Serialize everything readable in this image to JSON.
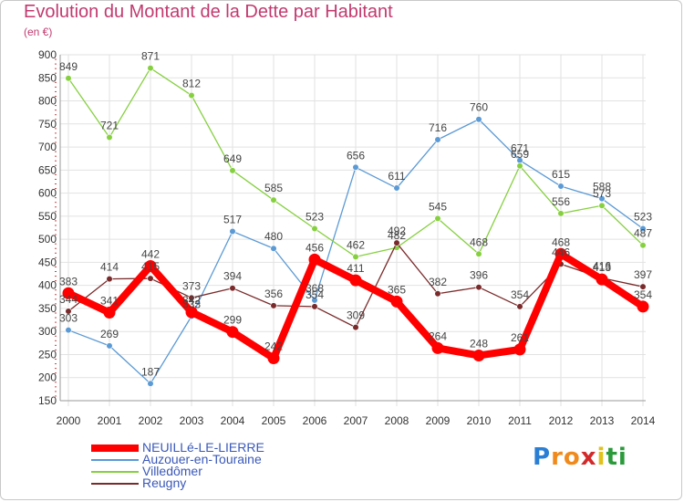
{
  "chart_data": {
    "type": "line",
    "title": "Evolution du Montant de la Dette par Habitant",
    "subtitle": "(en €)",
    "xlabel": "",
    "ylabel": "",
    "x": [
      "2000",
      "2001",
      "2002",
      "2003",
      "2004",
      "2005",
      "2006",
      "2007",
      "2008",
      "2009",
      "2010",
      "2011",
      "2012",
      "2013",
      "2014"
    ],
    "ylim": [
      150,
      900
    ],
    "yticks": [
      "150",
      "200",
      "250",
      "300",
      "350",
      "400",
      "450",
      "500",
      "550",
      "600",
      "650",
      "700",
      "750",
      "800",
      "850",
      "900"
    ],
    "grid": true,
    "legend_position": "bottom-left",
    "series": [
      {
        "name": "NEUILLé-LE-LIERRE",
        "color": "#ff0000",
        "values": [
          383,
          341,
          442,
          342,
          299,
          242,
          456,
          411,
          365,
          264,
          248,
          261,
          468,
          413,
          354
        ],
        "labels": [
          "383",
          "341",
          "442",
          "342",
          "299",
          "242",
          "456",
          "411",
          "365",
          "264",
          "248",
          "261",
          "468",
          "413",
          "354"
        ]
      },
      {
        "name": "Auzouer-en-Touraine",
        "color": "#5b9ad5",
        "values": [
          303,
          269,
          187,
          333,
          517,
          480,
          368,
          656,
          611,
          716,
          760,
          671,
          615,
          588,
          523
        ],
        "labels": [
          "303",
          "269",
          "187",
          "333",
          "517",
          "480",
          "368",
          "656",
          "611",
          "716",
          "760",
          "671",
          "615",
          "588",
          "523"
        ]
      },
      {
        "name": "Villedômer",
        "color": "#86d040",
        "values": [
          849,
          721,
          871,
          812,
          649,
          585,
          523,
          462,
          482,
          545,
          468,
          659,
          556,
          573,
          487
        ],
        "labels": [
          "849",
          "721",
          "871",
          "812",
          "649",
          "585",
          "523",
          "462",
          "482",
          "545",
          "468",
          "659",
          "556",
          "573",
          "487"
        ]
      },
      {
        "name": "Reugny",
        "color": "#7a2a2a",
        "values": [
          344,
          414,
          415,
          373,
          394,
          356,
          354,
          309,
          492,
          382,
          396,
          354,
          446,
          416,
          397
        ],
        "labels": [
          "344",
          "414",
          "415",
          "373",
          "394",
          "356",
          "354",
          "309",
          "492",
          "382",
          "396",
          "354",
          "446",
          "416",
          "397"
        ]
      }
    ]
  },
  "logo": {
    "letters": [
      "P",
      "r",
      "o",
      "x",
      "i",
      "t",
      "i"
    ],
    "colors": [
      "#2a7fd4",
      "#f08a1c",
      "#f08a1c",
      "#d22a2a",
      "#e0c21a",
      "#2a9a3a",
      "#2a9a3a"
    ]
  }
}
